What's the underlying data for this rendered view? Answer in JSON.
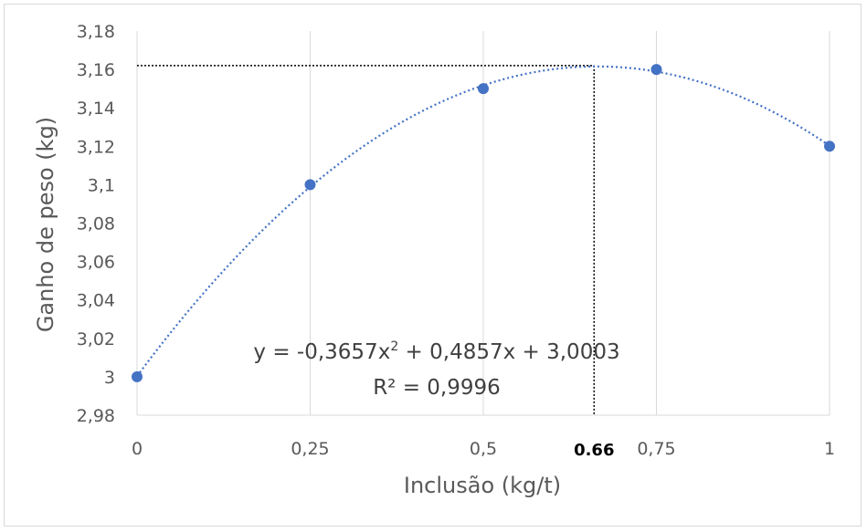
{
  "chart_data": {
    "type": "scatter",
    "xlabel": "Inclusão (kg/t)",
    "ylabel": "Ganho de peso (kg)",
    "x_ticks": [
      "0",
      "0,25",
      "0,5",
      "0,75",
      "1"
    ],
    "x_tick_values": [
      0,
      0.25,
      0.5,
      0.75,
      1
    ],
    "y_ticks": [
      "2,98",
      "3",
      "3,02",
      "3,04",
      "3,06",
      "3,08",
      "3,1",
      "3,12",
      "3,14",
      "3,16",
      "3,18"
    ],
    "y_tick_values": [
      2.98,
      3.0,
      3.02,
      3.04,
      3.06,
      3.08,
      3.1,
      3.12,
      3.14,
      3.16,
      3.18
    ],
    "xlim": [
      0,
      1
    ],
    "ylim": [
      2.98,
      3.18
    ],
    "grid": "vertical",
    "series": [
      {
        "x": [
          0,
          0.25,
          0.5,
          0.75,
          1
        ],
        "y": [
          3.0,
          3.1,
          3.15,
          3.16,
          3.12
        ]
      }
    ],
    "trendline": {
      "type": "polynomial-2",
      "coefficients": {
        "a": -0.3657,
        "b": 0.4857,
        "c": 3.0003
      },
      "equation": "y = -0,3657x",
      "equation_exp": "2",
      "equation_rest": " + 0,4857x + 3,0003",
      "r2_label": "R² = 0,9996",
      "style": "dotted"
    },
    "optimum_marker": {
      "x": 0.66,
      "y": 3.162,
      "label": "0.66"
    },
    "colors": {
      "points": "#4472c4",
      "trend": "#4472c4",
      "grid": "#d9d9d9",
      "guide": "#000000"
    }
  }
}
